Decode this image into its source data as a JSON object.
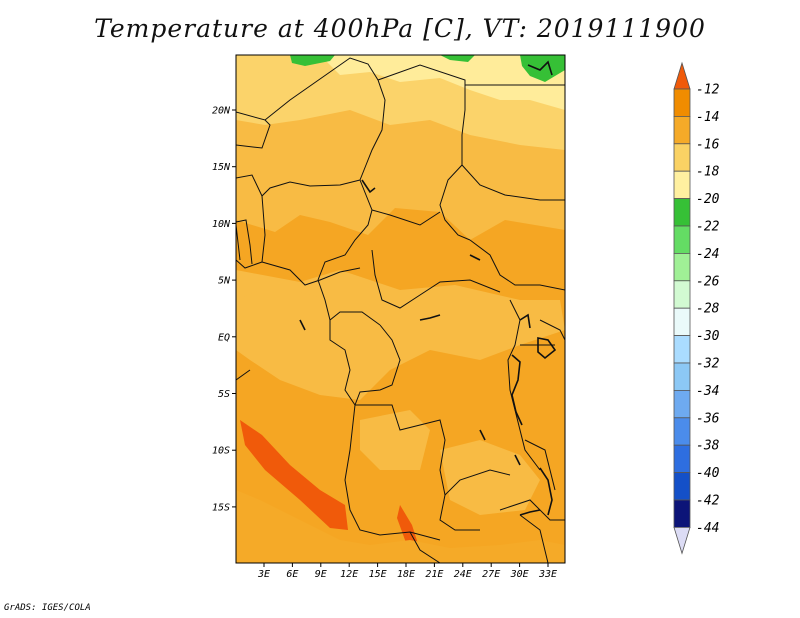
{
  "title": "Temperature at 400hPa [C], VT: 2019111900",
  "credit": "GrADS: IGES/COLA",
  "map": {
    "lat_labels": [
      "20N",
      "15N",
      "10N",
      "5N",
      "EQ",
      "5S",
      "10S",
      "15S"
    ],
    "lon_labels": [
      "3E",
      "6E",
      "9E",
      "12E",
      "15E",
      "18E",
      "21E",
      "24E",
      "27E",
      "30E",
      "33E"
    ]
  },
  "colorbar": {
    "labels": [
      "-12",
      "-14",
      "-16",
      "-18",
      "-20",
      "-22",
      "-24",
      "-26",
      "-28",
      "-30",
      "-32",
      "-34",
      "-36",
      "-38",
      "-40",
      "-42",
      "-44"
    ],
    "colors": [
      "#f05a0a",
      "#f08c00",
      "#f5aa28",
      "#fad264",
      "#fff0a0",
      "#36c036",
      "#64dc64",
      "#a0f096",
      "#d2fad2",
      "#eafafa",
      "#aadcff",
      "#8cc8f5",
      "#6eaaf0",
      "#4b8ceb",
      "#2e6ee0",
      "#1450c8",
      "#0c1478"
    ]
  }
}
